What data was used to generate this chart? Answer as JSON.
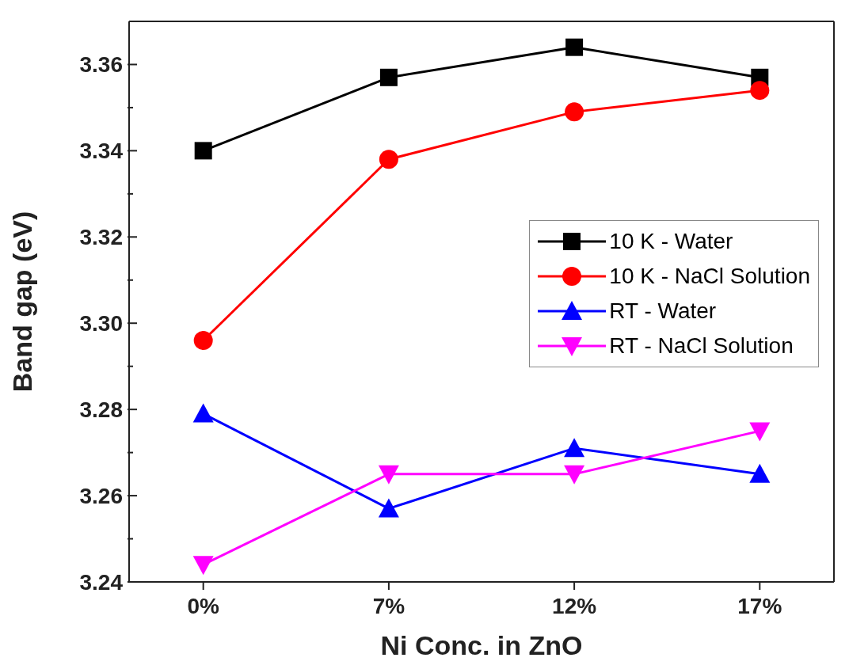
{
  "chart_data": {
    "type": "line",
    "xlabel": "Ni Conc. in ZnO",
    "ylabel": "Band gap (eV)",
    "categories": [
      "0%",
      "7%",
      "12%",
      "17%"
    ],
    "series": [
      {
        "name": "10 K - Water",
        "color": "#000000",
        "marker": "square",
        "values": [
          3.34,
          3.357,
          3.364,
          3.357
        ]
      },
      {
        "name": "10 K - NaCl Solution",
        "color": "#ff0000",
        "marker": "circle",
        "values": [
          3.296,
          3.338,
          3.349,
          3.354
        ]
      },
      {
        "name": "RT - Water",
        "color": "#0000ff",
        "marker": "triangle",
        "values": [
          3.279,
          3.257,
          3.271,
          3.265
        ]
      },
      {
        "name": "RT - NaCl Solution",
        "color": "#ff00ff",
        "marker": "triangle-down",
        "values": [
          3.244,
          3.265,
          3.265,
          3.275
        ]
      }
    ],
    "ylim": [
      3.24,
      3.37
    ],
    "yticks": [
      {
        "value": 3.24,
        "label": "3.24"
      },
      {
        "value": 3.25,
        "label": null
      },
      {
        "value": 3.26,
        "label": "3.26"
      },
      {
        "value": 3.27,
        "label": null
      },
      {
        "value": 3.28,
        "label": "3.28"
      },
      {
        "value": 3.29,
        "label": null
      },
      {
        "value": 3.3,
        "label": "3.30"
      },
      {
        "value": 3.31,
        "label": null
      },
      {
        "value": 3.32,
        "label": "3.32"
      },
      {
        "value": 3.33,
        "label": null
      },
      {
        "value": 3.34,
        "label": "3.34"
      },
      {
        "value": 3.35,
        "label": null
      },
      {
        "value": 3.36,
        "label": "3.36"
      }
    ],
    "legend": "right",
    "line_style": "solid"
  }
}
